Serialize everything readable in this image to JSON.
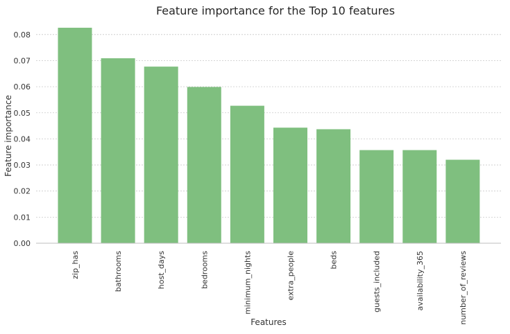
{
  "chart_data": {
    "type": "bar",
    "title": "Feature importance for the Top 10 features",
    "xlabel": "Features",
    "ylabel": "Feature importance",
    "categories": [
      "zip_has",
      "bathrooms",
      "host_days",
      "bedrooms",
      "minimum_nights",
      "extra_people",
      "beds",
      "guests_included",
      "availability_365",
      "number_of_reviews"
    ],
    "values": [
      0.0826,
      0.0709,
      0.0677,
      0.0599,
      0.0527,
      0.0443,
      0.0437,
      0.0357,
      0.0357,
      0.032
    ],
    "ylim": [
      0,
      0.085
    ],
    "yticks": [
      "0.00",
      "0.01",
      "0.02",
      "0.03",
      "0.04",
      "0.05",
      "0.06",
      "0.07",
      "0.08"
    ],
    "grid": "horizontal dotted",
    "bar_color": "#7fbf7f"
  }
}
